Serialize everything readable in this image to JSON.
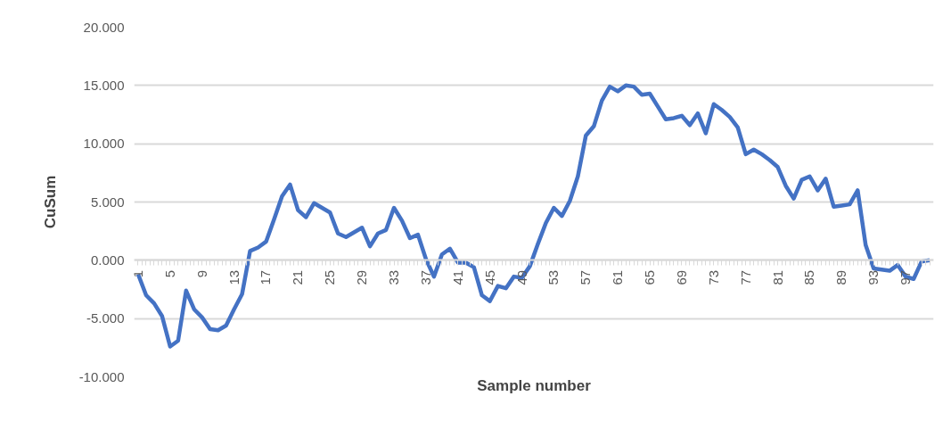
{
  "chart_data": {
    "type": "line",
    "xlabel": "Sample number",
    "ylabel": "CuSum",
    "categories": [
      "1",
      null,
      null,
      null,
      "5",
      null,
      null,
      null,
      "9",
      null,
      null,
      null,
      "13",
      null,
      null,
      null,
      "17",
      null,
      null,
      null,
      "21",
      null,
      null,
      null,
      "25",
      null,
      null,
      null,
      "29",
      null,
      null,
      null,
      "33",
      null,
      null,
      null,
      "37",
      null,
      null,
      null,
      "41",
      null,
      null,
      null,
      "45",
      null,
      null,
      null,
      "49",
      null,
      null,
      null,
      "53",
      null,
      null,
      null,
      "57",
      null,
      null,
      null,
      "61",
      null,
      null,
      null,
      "65",
      null,
      null,
      null,
      "69",
      null,
      null,
      null,
      "73",
      null,
      null,
      null,
      "77",
      null,
      null,
      null,
      "81",
      null,
      null,
      null,
      "85",
      null,
      null,
      null,
      "89",
      null,
      null,
      null,
      "93",
      null,
      null,
      null,
      "97",
      null,
      null,
      null
    ],
    "series": [
      {
        "color": "#4472c4",
        "values": [
          -1.2,
          -3.0,
          -3.7,
          -4.8,
          -7.4,
          -6.9,
          -2.6,
          -4.2,
          -4.9,
          -5.9,
          -6.0,
          -5.6,
          -4.2,
          -2.9,
          0.8,
          1.1,
          1.6,
          3.5,
          5.5,
          6.5,
          4.3,
          3.7,
          4.9,
          4.5,
          4.1,
          2.3,
          2.0,
          2.4,
          2.8,
          1.2,
          2.3,
          2.6,
          4.5,
          3.4,
          1.9,
          2.2,
          0.1,
          -1.4,
          0.5,
          1.0,
          -0.2,
          -0.2,
          -0.6,
          -3.0,
          -3.5,
          -2.2,
          -2.4,
          -1.4,
          -1.5,
          -0.5,
          1.4,
          3.2,
          4.5,
          3.8,
          5.1,
          7.2,
          10.7,
          11.5,
          13.7,
          14.9,
          14.5,
          15.0,
          14.9,
          14.2,
          14.3,
          13.2,
          12.1,
          12.2,
          12.4,
          11.6,
          12.6,
          10.9,
          13.4,
          12.9,
          12.3,
          11.4,
          9.1,
          9.5,
          9.1,
          8.6,
          8.0,
          6.4,
          5.3,
          6.9,
          7.2,
          6.0,
          7.0,
          4.6,
          4.7,
          4.8,
          6.0,
          1.3,
          -0.7,
          -0.8,
          -0.9,
          -0.4,
          -1.4,
          -1.6,
          -0.1,
          0.0
        ]
      }
    ],
    "ylim": [
      -10,
      20
    ],
    "yticks": [
      {
        "value": -10,
        "label": "-10.000"
      },
      {
        "value": -5,
        "label": "-5.000"
      },
      {
        "value": 0,
        "label": "0.000"
      },
      {
        "value": 5,
        "label": "5.000"
      },
      {
        "value": 10,
        "label": "10.000"
      },
      {
        "value": 15,
        "label": "15.000"
      },
      {
        "value": 20,
        "label": "20.000"
      }
    ],
    "grid": "y",
    "marker": "none",
    "line_style": "solid"
  }
}
